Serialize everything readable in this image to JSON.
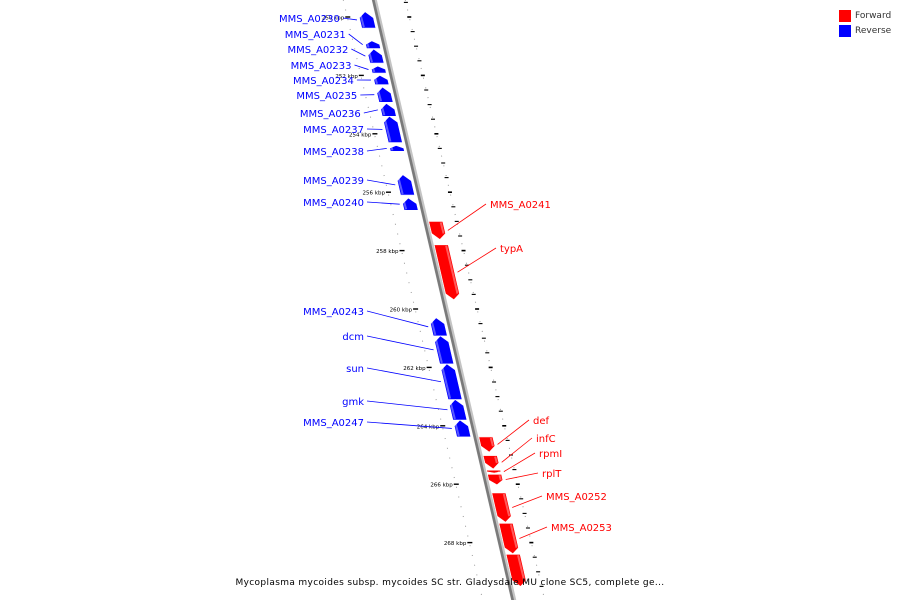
{
  "legend": {
    "forward_label": "Forward",
    "reverse_label": "Reverse",
    "forward_color": "#ff0000",
    "reverse_color": "#0000ff"
  },
  "caption": "Mycoplasma mycoides subsp. mycoides SC str. Gladysdale MU clone SC5, complete ge...",
  "ruler": {
    "unit": "kbp",
    "labels": [
      "250 kbp",
      "252 kbp",
      "254 kbp",
      "256 kbp",
      "258 kbp",
      "260 kbp",
      "262 kbp",
      "264 kbp",
      "266 kbp",
      "268 kbp"
    ]
  },
  "genes": [
    {
      "name": "MMS_A0230",
      "strand": "reverse",
      "start_kbp": 249.82,
      "end_kbp": 250.38
    },
    {
      "name": "MMS_A0231",
      "strand": "reverse",
      "start_kbp": 250.82,
      "end_kbp": 251.08
    },
    {
      "name": "MMS_A0232",
      "strand": "reverse",
      "start_kbp": 251.1,
      "end_kbp": 251.58
    },
    {
      "name": "MMS_A0233",
      "strand": "reverse",
      "start_kbp": 251.68,
      "end_kbp": 251.92
    },
    {
      "name": "MMS_A0234",
      "strand": "reverse",
      "start_kbp": 252.0,
      "end_kbp": 252.32
    },
    {
      "name": "MMS_A0235",
      "strand": "reverse",
      "start_kbp": 252.4,
      "end_kbp": 252.92
    },
    {
      "name": "MMS_A0236",
      "strand": "reverse",
      "start_kbp": 252.96,
      "end_kbp": 253.4
    },
    {
      "name": "MMS_A0237",
      "strand": "reverse",
      "start_kbp": 253.4,
      "end_kbp": 254.3
    },
    {
      "name": "MMS_A0238",
      "strand": "reverse",
      "start_kbp": 254.4,
      "end_kbp": 254.6
    },
    {
      "name": "MMS_A0239",
      "strand": "reverse",
      "start_kbp": 255.4,
      "end_kbp": 256.1
    },
    {
      "name": "MMS_A0240",
      "strand": "reverse",
      "start_kbp": 256.2,
      "end_kbp": 256.62
    },
    {
      "name": "MMS_A0241",
      "strand": "forward",
      "start_kbp": 257.0,
      "end_kbp": 257.62
    },
    {
      "name": "typA",
      "strand": "forward",
      "start_kbp": 257.8,
      "end_kbp": 259.68
    },
    {
      "name": "MMS_A0243",
      "strand": "reverse",
      "start_kbp": 260.3,
      "end_kbp": 260.92
    },
    {
      "name": "dcm",
      "strand": "reverse",
      "start_kbp": 260.92,
      "end_kbp": 261.88
    },
    {
      "name": "sun",
      "strand": "reverse",
      "start_kbp": 261.88,
      "end_kbp": 263.1
    },
    {
      "name": "gmk",
      "strand": "reverse",
      "start_kbp": 263.1,
      "end_kbp": 263.8
    },
    {
      "name": "MMS_A0247",
      "strand": "reverse",
      "start_kbp": 263.8,
      "end_kbp": 264.38
    },
    {
      "name": "def",
      "strand": "forward",
      "start_kbp": 264.38,
      "end_kbp": 264.9
    },
    {
      "name": "infC",
      "strand": "forward",
      "start_kbp": 265.02,
      "end_kbp": 265.48
    },
    {
      "name": "rpmI",
      "strand": "forward",
      "start_kbp": 265.52,
      "end_kbp": 265.62
    },
    {
      "name": "rplT",
      "strand": "forward",
      "start_kbp": 265.66,
      "end_kbp": 266.02
    },
    {
      "name": "MMS_A0252",
      "strand": "forward",
      "start_kbp": 266.3,
      "end_kbp": 267.3
    },
    {
      "name": "MMS_A0253",
      "strand": "forward",
      "start_kbp": 267.34,
      "end_kbp": 268.38
    },
    {
      "name": "",
      "strand": "forward",
      "start_kbp": 268.4,
      "end_kbp": 269.5
    }
  ]
}
